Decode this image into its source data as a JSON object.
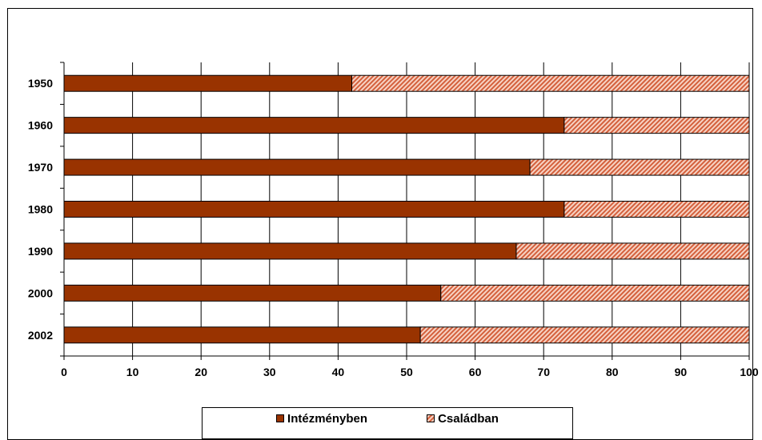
{
  "chart_data": {
    "type": "bar",
    "orientation": "horizontal",
    "stacked": true,
    "categories": [
      "1950",
      "1960",
      "1970",
      "1980",
      "1990",
      "2000",
      "2002"
    ],
    "series": [
      {
        "name": "Intézményben",
        "values": [
          42,
          73,
          68,
          73,
          66,
          55,
          52
        ],
        "color": "#993300"
      },
      {
        "name": "Családban",
        "values": [
          58,
          27,
          32,
          27,
          34,
          45,
          48
        ],
        "color": "#e87a5a",
        "pattern": "diagonal-hatch"
      }
    ],
    "xlim": [
      0,
      100
    ],
    "xticks": [
      "0",
      "10",
      "20",
      "30",
      "40",
      "50",
      "60",
      "70",
      "80",
      "90",
      "100"
    ],
    "grid": "vertical",
    "legend_position": "bottom"
  }
}
